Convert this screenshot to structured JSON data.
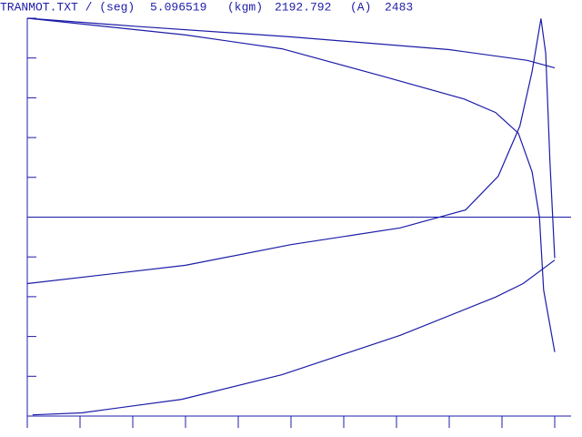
{
  "header": [
    "TRANMOT.TXT / (seg)",
    "5.096519",
    "(kgm)",
    "2192.792",
    "(A)",
    "2483"
  ],
  "chart_data": {
    "type": "line",
    "color": "#1c1ca8",
    "xlim": [
      0,
      10.3
    ],
    "ylim": [
      -5,
      5
    ],
    "xticks": [
      0,
      1,
      2,
      3,
      4,
      5,
      6,
      7,
      8,
      9,
      10
    ],
    "yticks": [
      -5,
      -4,
      -3,
      -2,
      -1,
      0,
      1,
      2,
      3,
      4,
      5
    ],
    "zero_line": true,
    "series": [
      {
        "x": [
          0,
          2,
          5,
          8,
          9.48,
          10
        ],
        "values": [
          5,
          4.8,
          4.53,
          4.21,
          3.94,
          3.75
        ]
      },
      {
        "x": [
          0,
          3,
          4.83,
          6.72,
          8.28,
          8.88,
          9.31,
          9.57,
          9.71,
          9.79,
          10
        ],
        "values": [
          5,
          4.58,
          4.23,
          3.55,
          2.97,
          2.63,
          2.11,
          1.14,
          0,
          -1.83,
          -3.39
        ]
      },
      {
        "x": [
          0,
          3,
          5,
          7.07,
          8.31,
          8.93,
          9.34,
          9.57,
          9.74,
          9.83,
          9.91,
          10
        ],
        "values": [
          -1.67,
          -1.21,
          -0.69,
          -0.27,
          0.18,
          1.03,
          2.29,
          3.66,
          4.99,
          4.12,
          1.37,
          -1.03
        ]
      },
      {
        "x": [
          0.1,
          1.03,
          2.93,
          4.83,
          7.07,
          8.88,
          9.4,
          10
        ],
        "values": [
          -4.97,
          -4.92,
          -4.58,
          -3.96,
          -2.97,
          -2.01,
          -1.67,
          -1.08
        ]
      }
    ]
  }
}
